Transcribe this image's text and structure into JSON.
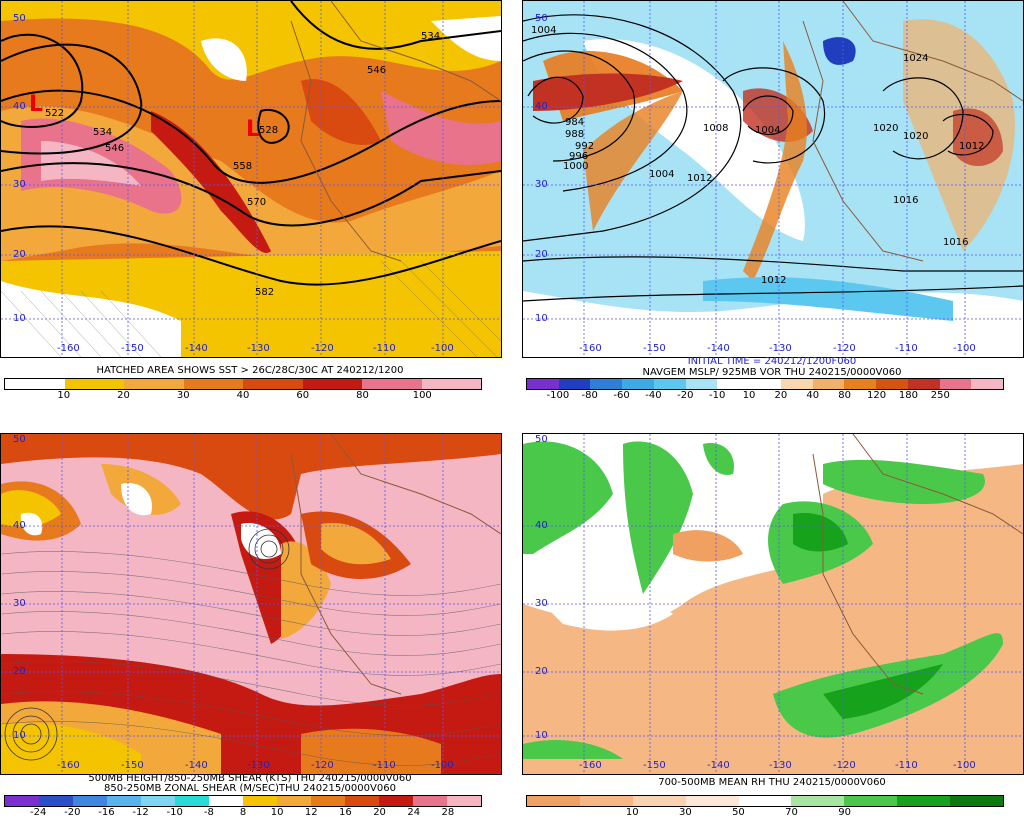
{
  "panels": {
    "tl": {
      "caption": "HATCHED AREA SHOWS SST > 26C/28C/30C AT 240212/1200",
      "lat_labels": [
        "50",
        "40",
        "30",
        "20",
        "10"
      ],
      "lon_labels": [
        "-160",
        "-150",
        "-140",
        "-130",
        "-120",
        "-110",
        "-100"
      ],
      "contour_labels": [
        "522",
        "534",
        "546",
        "534",
        "546",
        "558",
        "570",
        "582",
        "528"
      ],
      "colorbar": {
        "colors": [
          "#ffffff",
          "#f5c400",
          "#f3a83c",
          "#e87a1e",
          "#d84a10",
          "#c51a12",
          "#e8738a",
          "#f5b6c4"
        ],
        "ticks": [
          "10",
          "20",
          "30",
          "40",
          "60",
          "80",
          "100"
        ]
      }
    },
    "tr": {
      "caption_line1": "INITIAL TIME = 240212/1200F060",
      "caption_line2": "NAVGEM MSLP/ 925MB VOR THU 240215/0000V060",
      "lat_labels": [
        "50",
        "40",
        "30",
        "20",
        "10"
      ],
      "lon_labels": [
        "-160",
        "-150",
        "-140",
        "-130",
        "-120",
        "-110",
        "-100"
      ],
      "contour_labels": [
        "1004",
        "984",
        "988",
        "992",
        "996",
        "1000",
        "1004",
        "1008",
        "1012",
        "1024",
        "1020",
        "1016",
        "1012",
        "1004",
        "1020",
        "1016",
        "1012"
      ],
      "colorbar": {
        "colors": [
          "#7b2fd0",
          "#1f3fbf",
          "#2f7fd8",
          "#3fa9e8",
          "#5cc8f0",
          "#a7e3f5",
          "#ffffff",
          "#ffffff",
          "#f9d6b0",
          "#f2b06a",
          "#e8801e",
          "#d65410",
          "#c23222",
          "#e8738a",
          "#f5b6c4"
        ],
        "ticks": [
          "-100",
          "-80",
          "-60",
          "-40",
          "-20",
          "-10",
          "10",
          "20",
          "40",
          "80",
          "120",
          "180",
          "250"
        ]
      }
    },
    "bl": {
      "caption_line1": "500MB HEIGHT/850-250MB SHEAR (KTS) THU 240215/0000V060",
      "caption_line2": "850-250MB ZONAL SHEAR (M/SEC)THU 240215/0000V060",
      "lat_labels": [
        "50",
        "40",
        "30",
        "20",
        "10"
      ],
      "lon_labels": [
        "-160",
        "-150",
        "-140",
        "-130",
        "-120",
        "-110",
        "-100"
      ],
      "colorbar": {
        "colors": [
          "#7b2fd0",
          "#2b4fc8",
          "#3f86e0",
          "#58b4ec",
          "#7fd6f2",
          "#2dd8d8",
          "#ffffff",
          "#f5c400",
          "#f3a83c",
          "#e87a1e",
          "#d84a10",
          "#c51a12",
          "#e8738a",
          "#f5b6c4"
        ],
        "ticks": [
          "-24",
          "-20",
          "-16",
          "-12",
          "-10",
          "-8",
          "8",
          "10",
          "12",
          "16",
          "20",
          "24",
          "28"
        ]
      }
    },
    "br": {
      "caption": "700-500MB MEAN RH THU 240215/0000V060",
      "lat_labels": [
        "50",
        "40",
        "30",
        "20",
        "10"
      ],
      "lon_labels": [
        "-160",
        "-150",
        "-140",
        "-130",
        "-120",
        "-110",
        "-100"
      ],
      "colorbar": {
        "colors": [
          "#f0a060",
          "#f5b884",
          "#f9d3b0",
          "#fce8d8",
          "#ffffff",
          "#a6e6a0",
          "#49c84a",
          "#16a21a",
          "#0c7a0f"
        ],
        "ticks": [
          "10",
          "30",
          "50",
          "70",
          "90"
        ]
      }
    }
  }
}
